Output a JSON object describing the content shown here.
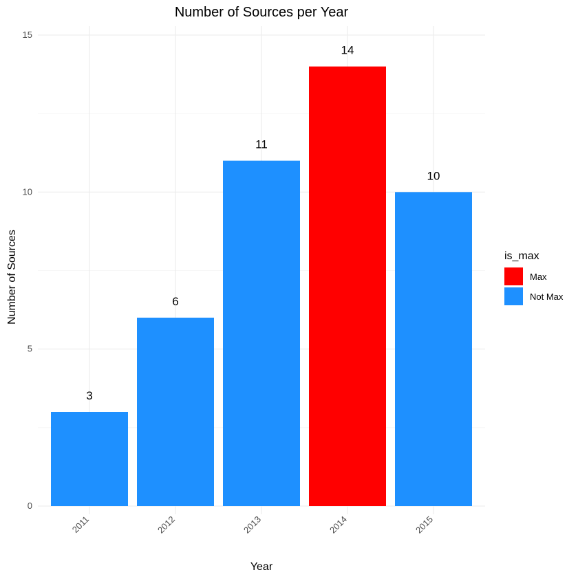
{
  "chart_data": {
    "type": "bar",
    "title": "Number of Sources per Year",
    "xlabel": "Year",
    "ylabel": "Number of Sources",
    "categories": [
      "2011",
      "2012",
      "2013",
      "2014",
      "2015"
    ],
    "values": [
      3,
      6,
      11,
      14,
      10
    ],
    "groups": [
      "Not Max",
      "Not Max",
      "Not Max",
      "Max",
      "Not Max"
    ],
    "ylim": [
      0,
      15
    ],
    "y_ticks": [
      0,
      5,
      10,
      15
    ],
    "grid": true,
    "x_tick_rotation": "45 degrees",
    "legend": {
      "title": "is_max",
      "placement": "right",
      "entries": [
        {
          "label": "Max",
          "color": "#ff0000"
        },
        {
          "label": "Not Max",
          "color": "#1e90ff"
        }
      ]
    },
    "colors": {
      "Max": "#ff0000",
      "Not Max": "#1e90ff"
    }
  }
}
